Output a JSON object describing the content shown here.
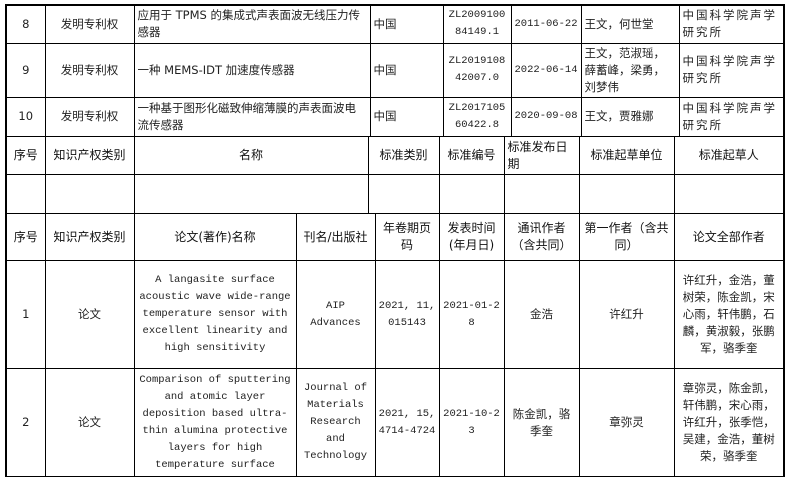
{
  "patents": [
    {
      "no": "8",
      "type": "发明专利权",
      "name": "应用于 TPMS 的集成式声表面波无线压力传感器",
      "country": "中国",
      "number": "ZL200910084149.1",
      "date": "2011-06-22",
      "inventors": "王文，何世堂",
      "holder": "中国科学院声学研究所"
    },
    {
      "no": "9",
      "type": "发明专利权",
      "name": "一种 MEMS-IDT 加速度传感器",
      "country": "中国",
      "number": "ZL201910842007.0",
      "date": "2022-06-14",
      "inventors": "王文，范淑瑶，薛蓄峰，梁勇，刘梦伟",
      "holder": "中国科学院声学研究所"
    },
    {
      "no": "10",
      "type": "发明专利权",
      "name": "一种基于图形化磁致伸缩薄膜的声表面波电流传感器",
      "country": "中国",
      "number": "ZL201710560422.8",
      "date": "2020-09-08",
      "inventors": "王文，贾雅娜",
      "holder": "中国科学院声学研究所"
    }
  ],
  "standards_header": [
    "序号",
    "知识产权类别",
    "名称",
    "标准类别",
    "标准编号",
    "标准发布日期",
    "标准起草单位",
    "标准起草人"
  ],
  "papers_header": [
    "序号",
    "知识产权类别",
    "论文(著作)名称",
    "刊名/出版社",
    "年卷期页码",
    "发表时间(年月日)",
    "通讯作者（含共同）",
    "第一作者（含共同）",
    "论文全部作者"
  ],
  "papers": [
    {
      "no": "1",
      "type": "论文",
      "title": "A langasite surface acoustic wave wide-range temperature sensor with excellent linearity and high sensitivity",
      "journal": "AIP Advances",
      "volume": "2021, 11, 015143",
      "date": "2021-01-28",
      "corresponding": "金浩",
      "first": "许红升",
      "authors": "许红升，金浩，董树荣，陈金凯，宋心雨，轩伟鹏，石麟，黄淑毅，张鹏军，骆季奎"
    },
    {
      "no": "2",
      "type": "论文",
      "title": "Comparison of sputtering and atomic layer deposition based ultra-thin alumina protective layers for high temperature surface",
      "journal": "Journal of Materials Research and Technology",
      "volume": "2021, 15, 4714-4724",
      "date": "2021-10-23",
      "corresponding": "陈金凯，骆季奎",
      "first": "章弥灵",
      "authors": "章弥灵，陈金凯，轩伟鹏，宋心雨，许红升，张季恺，吴建，金浩，董树荣，骆季奎"
    }
  ]
}
